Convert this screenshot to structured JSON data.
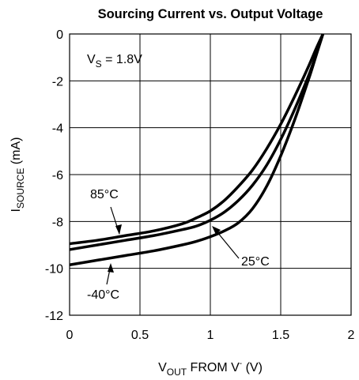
{
  "chart_data": {
    "type": "line",
    "title": "Sourcing Current vs. Output Voltage",
    "xlabel": {
      "main": "V",
      "sub": "OUT",
      "rest": " FROM V",
      "sup": "-",
      "tail": " (V)"
    },
    "ylabel": {
      "main": "I",
      "sub": "SOURCE",
      "tail": " (mA)"
    },
    "xlim": [
      0,
      2
    ],
    "ylim": [
      -12,
      0
    ],
    "x_ticks": [
      0,
      0.5,
      1,
      1.5,
      2
    ],
    "x_tick_labels": [
      "0",
      "0.5",
      "1",
      "1.5",
      "2"
    ],
    "y_ticks": [
      0,
      -2,
      -4,
      -6,
      -8,
      -10,
      -12
    ],
    "y_tick_labels": [
      "0",
      "-2",
      "-4",
      "-6",
      "-8",
      "-10",
      "-12"
    ],
    "grid": true,
    "condition": {
      "main": "V",
      "sub": "S",
      "tail": " = 1.8V"
    },
    "series": [
      {
        "name": "85°C",
        "x": [
          0,
          0.2,
          0.4,
          0.6,
          0.8,
          0.9,
          1.0,
          1.1,
          1.2,
          1.3,
          1.4,
          1.5,
          1.6,
          1.7,
          1.75,
          1.8
        ],
        "y": [
          -8.95,
          -8.8,
          -8.6,
          -8.4,
          -8.1,
          -7.85,
          -7.55,
          -7.1,
          -6.5,
          -5.8,
          -4.9,
          -3.85,
          -2.65,
          -1.35,
          -0.65,
          0
        ]
      },
      {
        "name": "25°C",
        "x": [
          0,
          0.2,
          0.4,
          0.6,
          0.8,
          0.9,
          1.0,
          1.1,
          1.2,
          1.3,
          1.4,
          1.5,
          1.6,
          1.7,
          1.75,
          1.8
        ],
        "y": [
          -9.2,
          -9.0,
          -8.8,
          -8.6,
          -8.35,
          -8.2,
          -7.95,
          -7.6,
          -7.1,
          -6.45,
          -5.6,
          -4.5,
          -3.2,
          -1.75,
          -0.9,
          0
        ]
      },
      {
        "name": "-40°C",
        "x": [
          0,
          0.2,
          0.4,
          0.6,
          0.8,
          0.9,
          1.0,
          1.1,
          1.2,
          1.3,
          1.4,
          1.5,
          1.6,
          1.7,
          1.75,
          1.8
        ],
        "y": [
          -9.85,
          -9.65,
          -9.45,
          -9.25,
          -9.0,
          -8.85,
          -8.65,
          -8.4,
          -8.05,
          -7.45,
          -6.5,
          -5.2,
          -3.65,
          -1.9,
          -0.95,
          0
        ]
      }
    ],
    "annotations": [
      {
        "label": "85°C",
        "series": "85°C"
      },
      {
        "label": "25°C",
        "series": "25°C"
      },
      {
        "label": "-40°C",
        "series": "-40°C"
      }
    ]
  }
}
